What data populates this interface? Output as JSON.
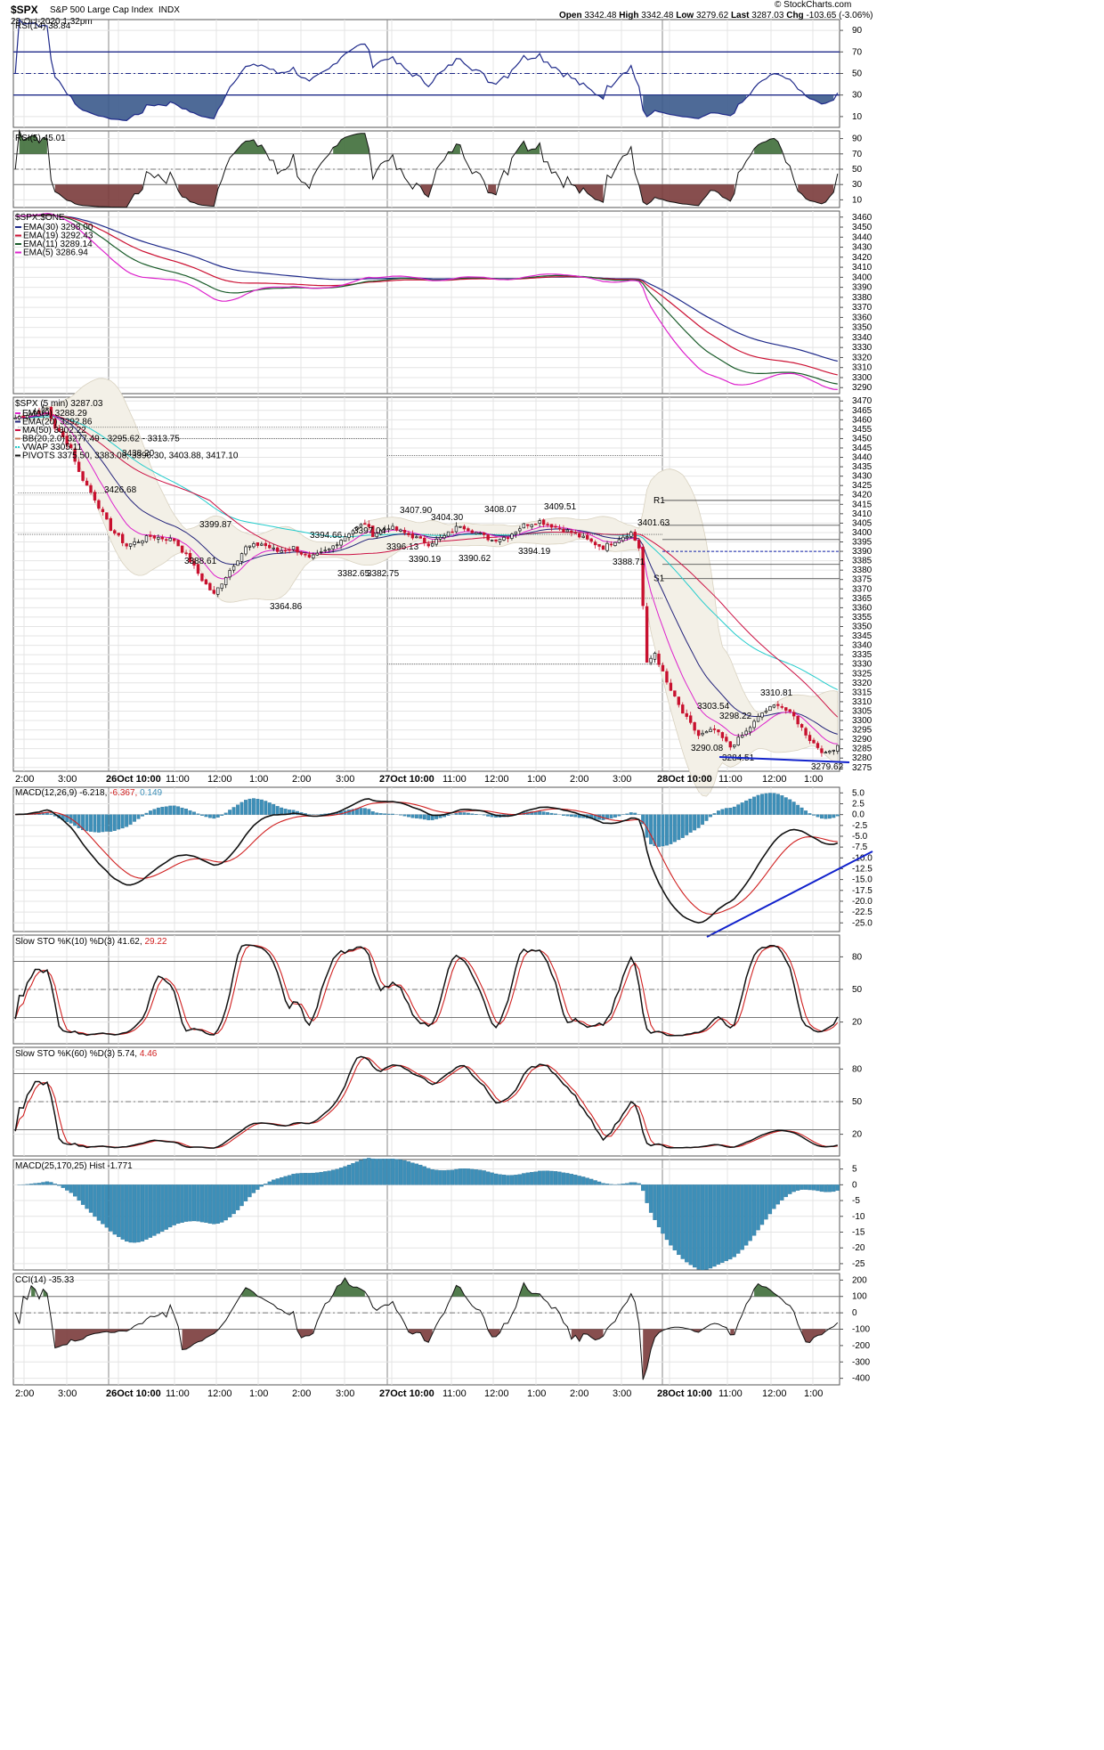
{
  "header": {
    "symbol": "$SPX",
    "name": "S&P 500 Large Cap Index",
    "exchange": "INDX",
    "date": "28-Oct-2020 1:32pm",
    "open_label": "Open",
    "open": "3342.48",
    "high_label": "High",
    "high": "3342.48",
    "low_label": "Low",
    "low": "3279.62",
    "last_label": "Last",
    "last": "3287.03",
    "chg_label": "Chg",
    "chg": "-103.65 (-3.06%)",
    "brand": "© StockCharts.com"
  },
  "colors": {
    "rsi": "#1f2a8a",
    "pos_fill": "#3f6e3a",
    "neg_fill": "#7a3b3b",
    "rsi14_neg_fill": "#3b5a8c",
    "ema30": "#1f2a8a",
    "ema19": "#cc1133",
    "ema11": "#1a5c2a",
    "ema5": "#dd22cc",
    "ema9": "#dd22cc",
    "ema20": "#22227a",
    "ma50": "#cc1144",
    "bb": "#d9d2c0",
    "vwap": "#22cccc",
    "hist": "#3d8fb8",
    "trend": "#1122cc",
    "grid": "#e4e4e4",
    "frame": "#555555"
  },
  "x_axis": {
    "labels": [
      "2:00",
      "3:00",
      "26Oct 10:00",
      "11:00",
      "12:00",
      "1:00",
      "2:00",
      "3:00",
      "27Oct 10:00",
      "11:00",
      "12:00",
      "1:00",
      "2:00",
      "3:00",
      "28Oct 10:00",
      "11:00",
      "12:00",
      "1:00"
    ]
  },
  "panels": {
    "rsi14": {
      "label": "RSI(14)",
      "value": "38.84",
      "ticks": [
        "90",
        "70",
        "50",
        "30",
        "10"
      ]
    },
    "rsi5": {
      "label": "RSI(5)",
      "value": "45.01",
      "ticks": [
        "90",
        "70",
        "50",
        "30",
        "10"
      ]
    },
    "ema": {
      "label": "$SPX:$ONE",
      "legend": [
        {
          "name": "EMA(30)",
          "value": "3298.00"
        },
        {
          "name": "EMA(19)",
          "value": "3292.43"
        },
        {
          "name": "EMA(11)",
          "value": "3289.14"
        },
        {
          "name": "EMA(5)",
          "value": "3286.94"
        }
      ],
      "ticks": [
        "3460",
        "3450",
        "3440",
        "3430",
        "3420",
        "3410",
        "3400",
        "3390",
        "3380",
        "3370",
        "3360",
        "3350",
        "3340",
        "3330",
        "3320",
        "3310",
        "3300",
        "3290"
      ]
    },
    "price": {
      "label": "$SPX (5 min)",
      "value": "3287.03",
      "legend": [
        {
          "name": "EMA(9)",
          "value": "3288.29"
        },
        {
          "name": "EMA(20)",
          "value": "3292.86"
        },
        {
          "name": "MA(50)",
          "value": "3302.22"
        },
        {
          "name": "BB(20,2.0)",
          "value": "3277.49 - 3295.62 - 3313.75"
        },
        {
          "name": "VWAP",
          "value": "3305.11"
        },
        {
          "name": "PIVOTS",
          "value": "3375.50, 3383.08, 3396.30, 3403.88, 3417.10"
        }
      ],
      "ticks": [
        "3470",
        "3465",
        "3460",
        "3455",
        "3450",
        "3445",
        "3440",
        "3435",
        "3430",
        "3425",
        "3420",
        "3415",
        "3410",
        "3405",
        "3400",
        "3395",
        "3390",
        "3385",
        "3380",
        "3375",
        "3370",
        "3365",
        "3360",
        "3355",
        "3350",
        "3345",
        "3340",
        "3335",
        "3330",
        "3325",
        "3320",
        "3315",
        "3310",
        "3305",
        "3300",
        "3295",
        "3290",
        "3285",
        "3280",
        "3275"
      ],
      "annotations": [
        "3426.68",
        "3438.20",
        "3399.87",
        "3388.61",
        "3364.86",
        "3394.66",
        "3382.65",
        "3382.75",
        "3397.04",
        "3396.13",
        "3407.90",
        "3404.30",
        "3390.19",
        "3408.07",
        "3390.62",
        "3409.51",
        "3394.19",
        "3401.63",
        "3388.71",
        "3303.54",
        "3298.22",
        "3290.08",
        "3284.51",
        "3310.81",
        "3279.62"
      ],
      "pivot_tags": [
        "R1",
        "S1"
      ]
    },
    "macd": {
      "label": "MACD(12,26,9)",
      "v1": "-6.218",
      "v2": "-6.367",
      "v3": "0.149",
      "ticks": [
        "5.0",
        "2.5",
        "0.0",
        "-2.5",
        "-5.0",
        "-7.5",
        "-10.0",
        "-12.5",
        "-15.0",
        "-17.5",
        "-20.0",
        "-22.5",
        "-25.0"
      ]
    },
    "sto10": {
      "label": "Slow STO %K(10) %D(3)",
      "k": "41.62",
      "d": "29.22",
      "ticks": [
        "80",
        "50",
        "20"
      ]
    },
    "sto60": {
      "label": "Slow STO %K(60) %D(3)",
      "k": "5.74",
      "d": "4.46",
      "ticks": [
        "80",
        "50",
        "20"
      ]
    },
    "macd_long": {
      "label": "MACD(25,170,25) Hist",
      "value": "-1.771",
      "ticks": [
        "5",
        "0",
        "-5",
        "-10",
        "-15",
        "-20",
        "-25"
      ]
    },
    "cci": {
      "label": "CCI(14)",
      "value": "-35.33",
      "ticks": [
        "200",
        "100",
        "0",
        "-100",
        "-200",
        "-300",
        "-400"
      ]
    }
  },
  "chart_data": {
    "type": "line",
    "title": "$SPX S&P 500 Large Cap Index",
    "session_anchors": [
      {
        "t": 0,
        "v": 3461
      },
      {
        "t": 8,
        "v": 3466
      },
      {
        "t": 10,
        "v": 3456
      },
      {
        "t": 14,
        "v": 3445
      },
      {
        "t": 16,
        "v": 3432
      },
      {
        "t": 20,
        "v": 3418
      },
      {
        "t": 24,
        "v": 3402
      },
      {
        "t": 28,
        "v": 3393
      },
      {
        "t": 34,
        "v": 3398
      },
      {
        "t": 40,
        "v": 3396
      },
      {
        "t": 44,
        "v": 3385
      },
      {
        "t": 47,
        "v": 3375
      },
      {
        "t": 50,
        "v": 3367
      },
      {
        "t": 54,
        "v": 3380
      },
      {
        "t": 58,
        "v": 3392
      },
      {
        "t": 62,
        "v": 3394
      },
      {
        "t": 66,
        "v": 3390
      },
      {
        "t": 70,
        "v": 3392
      },
      {
        "t": 74,
        "v": 3386
      },
      {
        "t": 79,
        "v": 3391
      },
      {
        "t": 84,
        "v": 3400
      },
      {
        "t": 88,
        "v": 3405
      },
      {
        "t": 90,
        "v": 3399
      },
      {
        "t": 94,
        "v": 3403
      },
      {
        "t": 100,
        "v": 3398
      },
      {
        "t": 104,
        "v": 3394
      },
      {
        "t": 108,
        "v": 3398
      },
      {
        "t": 112,
        "v": 3404
      },
      {
        "t": 116,
        "v": 3400
      },
      {
        "t": 120,
        "v": 3396
      },
      {
        "t": 124,
        "v": 3398
      },
      {
        "t": 128,
        "v": 3404
      },
      {
        "t": 132,
        "v": 3406
      },
      {
        "t": 136,
        "v": 3403
      },
      {
        "t": 140,
        "v": 3400
      },
      {
        "t": 144,
        "v": 3396
      },
      {
        "t": 148,
        "v": 3392
      },
      {
        "t": 152,
        "v": 3397
      },
      {
        "t": 155,
        "v": 3400
      },
      {
        "t": 157,
        "v": 3392
      },
      {
        "t": 159,
        "v": 3330
      },
      {
        "t": 161,
        "v": 3336
      },
      {
        "t": 164,
        "v": 3320
      },
      {
        "t": 168,
        "v": 3304
      },
      {
        "t": 172,
        "v": 3292
      },
      {
        "t": 176,
        "v": 3295
      },
      {
        "t": 180,
        "v": 3286
      },
      {
        "t": 184,
        "v": 3294
      },
      {
        "t": 188,
        "v": 3304
      },
      {
        "t": 192,
        "v": 3309
      },
      {
        "t": 196,
        "v": 3302
      },
      {
        "t": 200,
        "v": 3290
      },
      {
        "t": 204,
        "v": 3282
      },
      {
        "t": 207,
        "v": 3287
      }
    ],
    "price_range": [
      3273,
      3472
    ],
    "ema_panel_range": [
      3284,
      3466
    ]
  }
}
